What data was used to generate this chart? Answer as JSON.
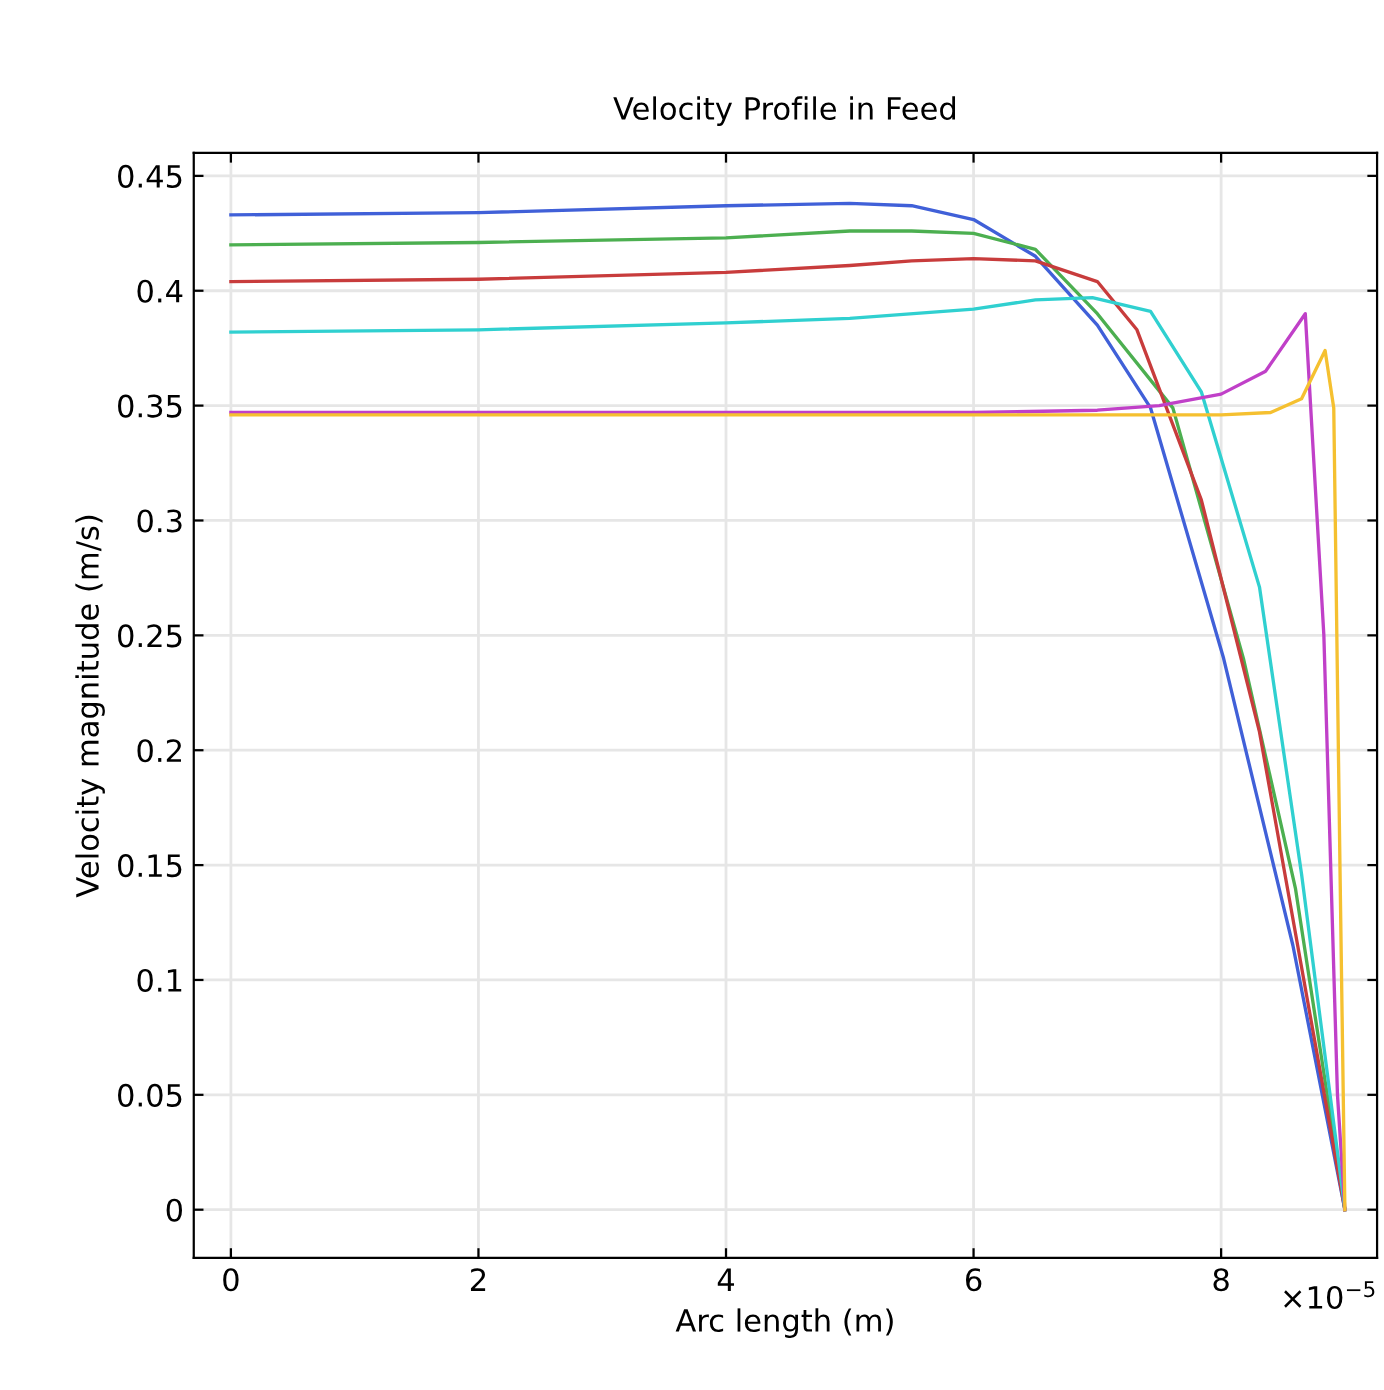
{
  "chart_data": {
    "type": "line",
    "title": "Velocity Profile in Feed",
    "xlabel": "Arc length (m)",
    "ylabel": "Velocity magnitude (m/s)",
    "xlim": [
      -0.3,
      9.26
    ],
    "xticks": [
      0,
      2,
      4,
      6,
      8
    ],
    "ylim": [
      -0.021,
      0.46
    ],
    "yticks": [
      0,
      0.05,
      0.1,
      0.15,
      0.2,
      0.25,
      0.3,
      0.35,
      0.4,
      0.45
    ],
    "grid": true,
    "marker": "none",
    "line_style": "solid",
    "annotations": [
      "×10$^{−5}$"
    ],
    "series": [
      {
        "color": "#4060d8",
        "x": [
          0,
          2,
          4,
          5,
          5.5,
          6,
          6.5,
          7,
          7.43,
          8.02,
          8.58,
          9
        ],
        "values": [
          0.433,
          0.434,
          0.437,
          0.438,
          0.437,
          0.431,
          0.415,
          0.385,
          0.349,
          0.24,
          0.115,
          0
        ]
      },
      {
        "color": "#4caf50",
        "x": [
          0,
          2,
          4,
          5,
          5.5,
          6,
          6.5,
          7,
          7.61,
          8.18,
          8.6,
          9
        ],
        "values": [
          0.42,
          0.421,
          0.423,
          0.426,
          0.426,
          0.425,
          0.418,
          0.39,
          0.349,
          0.24,
          0.14,
          0
        ]
      },
      {
        "color": "#c83c3c",
        "x": [
          0,
          2,
          4,
          5,
          5.5,
          6,
          6.5,
          7,
          7.32,
          7.84,
          8.31,
          9
        ],
        "values": [
          0.404,
          0.405,
          0.408,
          0.411,
          0.413,
          0.414,
          0.413,
          0.404,
          0.383,
          0.309,
          0.208,
          0
        ]
      },
      {
        "color": "#30d0d0",
        "x": [
          0,
          2,
          4,
          5,
          6,
          6.5,
          6.96,
          7.43,
          7.84,
          8.31,
          8.65,
          9
        ],
        "values": [
          0.382,
          0.383,
          0.386,
          0.388,
          0.392,
          0.396,
          0.397,
          0.391,
          0.356,
          0.271,
          0.146,
          0
        ]
      },
      {
        "color": "#c040c8",
        "x": [
          0,
          2,
          4,
          6,
          7,
          7.5,
          8,
          8.36,
          8.68,
          8.83,
          8.94,
          9
        ],
        "values": [
          0.347,
          0.347,
          0.347,
          0.347,
          0.348,
          0.35,
          0.355,
          0.365,
          0.39,
          0.25,
          0.05,
          0
        ]
      },
      {
        "color": "#f5c030",
        "x": [
          0,
          2,
          4,
          6,
          7,
          8,
          8.4,
          8.65,
          8.84,
          8.91,
          8.96,
          9
        ],
        "values": [
          0.346,
          0.346,
          0.346,
          0.346,
          0.346,
          0.346,
          0.347,
          0.353,
          0.374,
          0.349,
          0.15,
          0
        ]
      }
    ]
  }
}
